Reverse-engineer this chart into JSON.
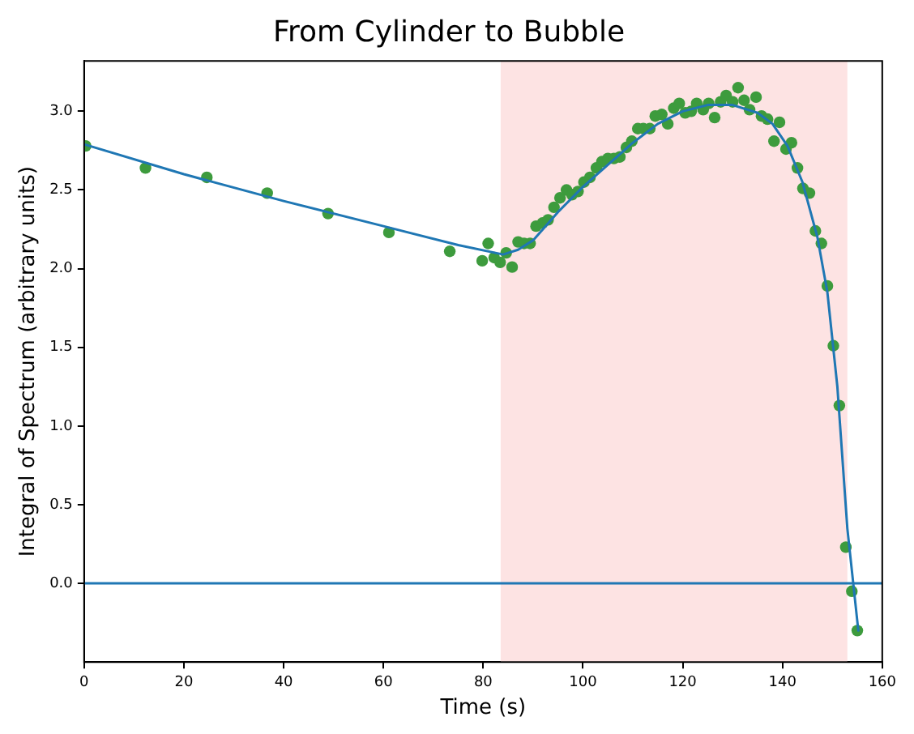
{
  "chart_data": {
    "type": "scatter",
    "title": "From Cylinder to Bubble",
    "xlabel": "Time (s)",
    "ylabel": "Integral of Spectrum (arbitrary units)",
    "xlim": [
      0,
      160
    ],
    "xticks": [
      0,
      20,
      40,
      60,
      80,
      100,
      120,
      140,
      160
    ],
    "ylim": [
      -0.5,
      3.32
    ],
    "yticks": [
      {
        "value": 0,
        "label": "0.0"
      },
      {
        "value": 0.5,
        "label": "0.5"
      },
      {
        "value": 1,
        "label": "1.0"
      },
      {
        "value": 1.5,
        "label": "1.5"
      },
      {
        "value": 2,
        "label": "2.0"
      },
      {
        "value": 2.5,
        "label": "2.5"
      },
      {
        "value": 3,
        "label": "3.0"
      }
    ],
    "grid": false,
    "marker": "circle",
    "series": [
      {
        "type": "scatter",
        "color": "#3d9b3d",
        "x": [
          0.3,
          12.3,
          24.6,
          36.7,
          48.9,
          61.1,
          73.3,
          79.8,
          81,
          82.2,
          83.4,
          84.6,
          85.8,
          87,
          88.2,
          89.4,
          90.6,
          91.9,
          93,
          94.2,
          95.4,
          96.7,
          97.8,
          99,
          100.2,
          101.4,
          102.7,
          103.8,
          105,
          106.2,
          107.4,
          108.7,
          109.8,
          111,
          112.1,
          113.4,
          114.5,
          115.8,
          117,
          118.2,
          119.3,
          120.5,
          121.7,
          122.8,
          124.1,
          125.2,
          126.4,
          127.6,
          128.7,
          130,
          131.1,
          132.3,
          133.4,
          134.7,
          135.8,
          137,
          138.3,
          139.4,
          140.7,
          141.8,
          143,
          144.1,
          145.4,
          146.6,
          147.8,
          149,
          150.2,
          151.4,
          152.7,
          153.9,
          155
        ],
        "values": [
          2.78,
          2.64,
          2.58,
          2.48,
          2.35,
          2.23,
          2.11,
          2.05,
          2.16,
          2.07,
          2.04,
          2.1,
          2.01,
          2.17,
          2.16,
          2.16,
          2.27,
          2.29,
          2.31,
          2.39,
          2.45,
          2.5,
          2.47,
          2.49,
          2.55,
          2.58,
          2.64,
          2.68,
          2.7,
          2.7,
          2.71,
          2.77,
          2.81,
          2.89,
          2.89,
          2.89,
          2.97,
          2.98,
          2.92,
          3.02,
          3.05,
          2.99,
          3,
          3.05,
          3.01,
          3.05,
          2.96,
          3.06,
          3.1,
          3.06,
          3.15,
          3.07,
          3.01,
          3.09,
          2.97,
          2.95,
          2.81,
          2.93,
          2.76,
          2.8,
          2.64,
          2.51,
          2.48,
          2.24,
          2.16,
          1.89,
          1.51,
          1.13,
          0.23,
          -0.05,
          -0.3
        ]
      },
      {
        "type": "line",
        "color": "#1f77b4",
        "marker": "none",
        "x": [
          0,
          20,
          40,
          60,
          75,
          84,
          87,
          90,
          95,
          100,
          105,
          110,
          115,
          120,
          125,
          130,
          135,
          138,
          141,
          144,
          147,
          149,
          151,
          153,
          155.2
        ],
        "values": [
          2.79,
          2.6,
          2.43,
          2.27,
          2.15,
          2.09,
          2.12,
          2.18,
          2.36,
          2.52,
          2.66,
          2.8,
          2.92,
          3.0,
          3.04,
          3.04,
          2.99,
          2.92,
          2.78,
          2.55,
          2.2,
          1.85,
          1.25,
          0.35,
          -0.3
        ]
      }
    ],
    "ref_lines": [
      {
        "axis": "y",
        "value": 0,
        "color": "#1f77b4"
      }
    ],
    "bands": [
      {
        "axis": "x",
        "from": 83.5,
        "to": 153,
        "color": "#fde3e3"
      }
    ]
  }
}
